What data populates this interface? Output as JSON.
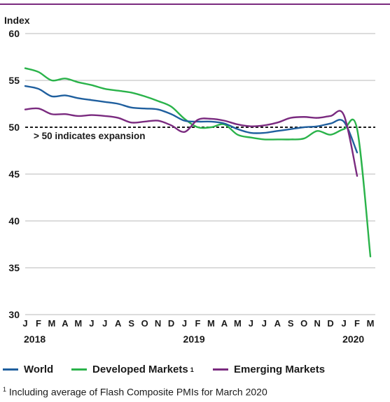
{
  "chart_data": {
    "type": "line",
    "ylabel": "Index",
    "ylim": [
      30,
      60
    ],
    "yticks": [
      30,
      35,
      40,
      45,
      50,
      55,
      60
    ],
    "x_labels": [
      "J",
      "F",
      "M",
      "A",
      "M",
      "J",
      "J",
      "A",
      "S",
      "O",
      "N",
      "D",
      "J",
      "F",
      "M",
      "A",
      "M",
      "J",
      "J",
      "A",
      "S",
      "O",
      "N",
      "D",
      "J",
      "F",
      "M"
    ],
    "years": [
      {
        "label": "2018",
        "index": 0
      },
      {
        "label": "2019",
        "index": 12
      },
      {
        "label": "2020",
        "index": 24
      }
    ],
    "reference_line": {
      "value": 50,
      "label": "> 50 indicates expansion"
    },
    "series": [
      {
        "name": "World",
        "color": "#1f5f9e",
        "x": [
          0,
          1,
          2,
          3,
          4,
          5,
          6,
          7,
          8,
          9,
          10,
          11,
          12,
          13,
          14,
          15,
          16,
          17,
          18,
          19,
          20,
          21,
          22,
          23,
          24,
          25
        ],
        "values": [
          54.4,
          54.1,
          53.3,
          53.4,
          53.1,
          52.9,
          52.7,
          52.5,
          52.1,
          52.0,
          51.9,
          51.4,
          50.7,
          50.6,
          50.6,
          50.4,
          49.8,
          49.4,
          49.4,
          49.6,
          49.8,
          50.0,
          50.1,
          50.4,
          50.6,
          47.3
        ]
      },
      {
        "name": "Developed Markets",
        "sup": "1",
        "color": "#2ab34a",
        "x": [
          0,
          1,
          2,
          3,
          4,
          5,
          6,
          7,
          8,
          9,
          10,
          11,
          12,
          13,
          14,
          15,
          16,
          17,
          18,
          19,
          20,
          21,
          22,
          23,
          24,
          25,
          26
        ],
        "values": [
          56.3,
          55.9,
          55.0,
          55.2,
          54.8,
          54.5,
          54.1,
          53.9,
          53.7,
          53.3,
          52.8,
          52.2,
          50.9,
          50.0,
          50.0,
          50.3,
          49.2,
          48.9,
          48.7,
          48.7,
          48.7,
          48.8,
          49.6,
          49.2,
          49.8,
          49.8,
          36.2
        ]
      },
      {
        "name": "Emerging Markets",
        "color": "#7a2a7f",
        "x": [
          0,
          1,
          2,
          3,
          4,
          5,
          6,
          7,
          8,
          9,
          10,
          11,
          12,
          13,
          14,
          15,
          16,
          17,
          18,
          19,
          20,
          21,
          22,
          23,
          24,
          25
        ],
        "values": [
          51.9,
          52.0,
          51.4,
          51.4,
          51.2,
          51.3,
          51.2,
          51.0,
          50.5,
          50.6,
          50.7,
          50.2,
          49.5,
          50.8,
          50.9,
          50.7,
          50.3,
          50.1,
          50.2,
          50.5,
          51.0,
          51.1,
          51.0,
          51.2,
          51.3,
          44.8
        ]
      }
    ]
  },
  "footnote": {
    "mark": "1",
    "text": " Including average of Flash Composite PMIs for March 2020"
  }
}
